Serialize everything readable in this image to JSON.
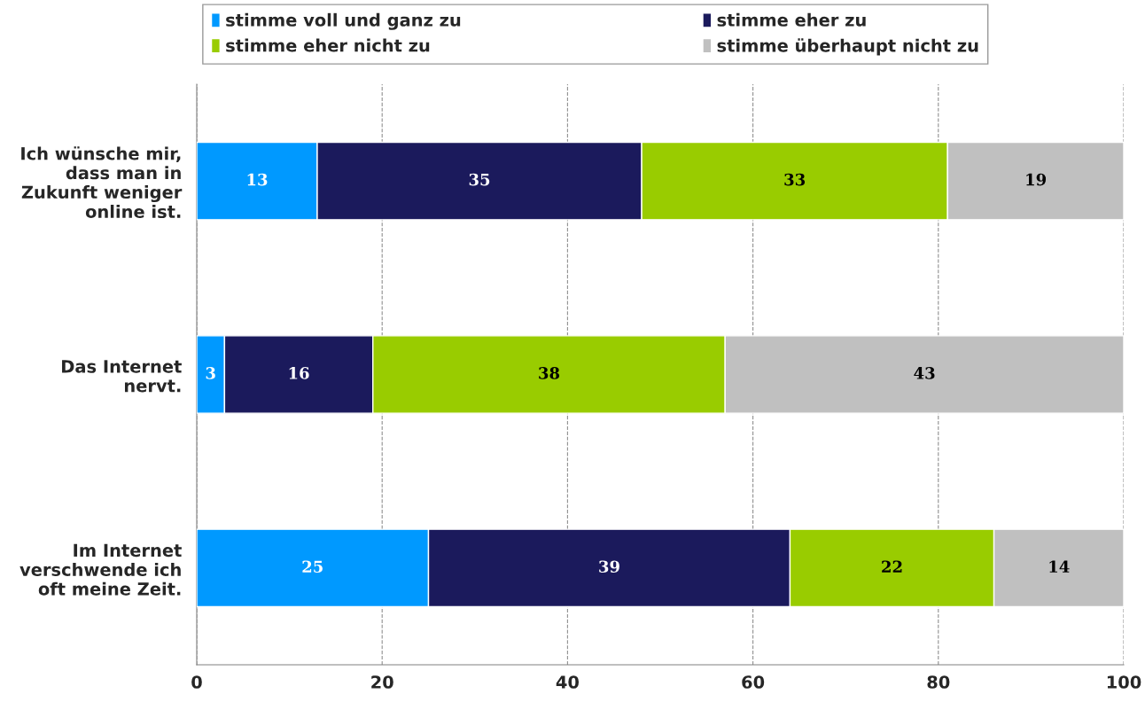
{
  "chart_data": {
    "type": "bar",
    "orientation": "horizontal",
    "stacked": true,
    "categories": [
      "Ich wünsche mir, dass man in Zukunft weniger online ist.",
      "Das Internet nervt.",
      "Im Internet verschwende ich oft meine Zeit."
    ],
    "series": [
      {
        "name": "stimme voll und ganz zu",
        "color": "#0099ff",
        "values": [
          13,
          3,
          25
        ]
      },
      {
        "name": "stimme eher zu",
        "color": "#1b1a5c",
        "values": [
          35,
          16,
          39
        ]
      },
      {
        "name": "stimme eher nicht zu",
        "color": "#99cc00",
        "values": [
          33,
          38,
          22
        ]
      },
      {
        "name": "stimme überhaupt nicht zu",
        "color": "#c0c0c0",
        "values": [
          19,
          43,
          14
        ]
      }
    ],
    "xlim": [
      0,
      100
    ],
    "xticks": [
      0,
      20,
      40,
      60,
      80,
      100
    ],
    "grid": "x",
    "legend": "top",
    "data_labels": true
  }
}
